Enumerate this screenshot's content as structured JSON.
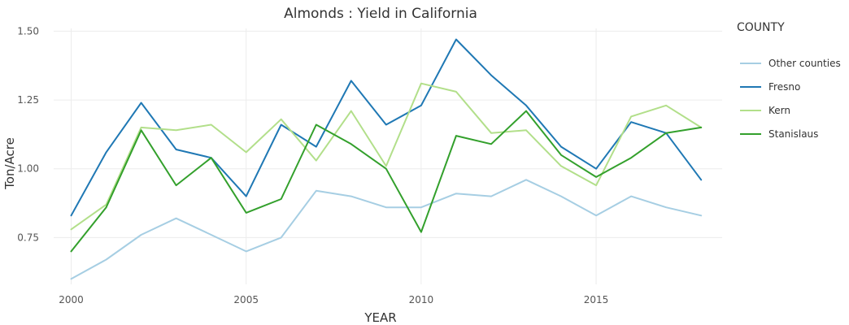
{
  "chart_data": {
    "type": "line",
    "title": "Almonds : Yield in California",
    "xlabel": "YEAR",
    "ylabel": "Ton/Acre",
    "xlim": [
      1999.5,
      2018.6
    ],
    "ylim": [
      0.58,
      1.51
    ],
    "x_ticks": [
      2000,
      2005,
      2010,
      2015
    ],
    "x_tick_labels": [
      "2000",
      "2005",
      "2010",
      "2015"
    ],
    "y_ticks": [
      0.75,
      1.0,
      1.25,
      1.5
    ],
    "y_tick_labels": [
      "0.75",
      "1.00",
      "1.25",
      "1.50"
    ],
    "grid": true,
    "legend": {
      "title": "COUNTY",
      "placement": "right"
    },
    "x": [
      2000,
      2001,
      2002,
      2003,
      2004,
      2005,
      2006,
      2007,
      2008,
      2009,
      2010,
      2011,
      2012,
      2013,
      2014,
      2015,
      2016,
      2017,
      2018
    ],
    "series": [
      {
        "name": "Other counties",
        "color": "#a6cee3",
        "values": [
          0.6,
          0.67,
          0.76,
          0.82,
          0.76,
          0.7,
          0.75,
          0.92,
          0.9,
          0.86,
          0.86,
          0.91,
          0.9,
          0.96,
          0.9,
          0.83,
          0.9,
          0.86,
          0.83
        ]
      },
      {
        "name": "Fresno",
        "color": "#1f78b4",
        "values": [
          0.83,
          1.06,
          1.24,
          1.07,
          1.04,
          0.9,
          1.16,
          1.08,
          1.32,
          1.16,
          1.23,
          1.47,
          1.34,
          1.23,
          1.08,
          1.0,
          1.17,
          1.13,
          0.96
        ]
      },
      {
        "name": "Kern",
        "color": "#b2df8a",
        "values": [
          0.78,
          0.87,
          1.15,
          1.14,
          1.16,
          1.06,
          1.18,
          1.03,
          1.21,
          1.01,
          1.31,
          1.28,
          1.13,
          1.14,
          1.01,
          0.94,
          1.19,
          1.23,
          1.15
        ]
      },
      {
        "name": "Stanislaus",
        "color": "#33a02c",
        "values": [
          0.7,
          0.86,
          1.14,
          0.94,
          1.04,
          0.84,
          0.89,
          1.16,
          1.09,
          1.0,
          0.77,
          1.12,
          1.09,
          1.21,
          1.05,
          0.97,
          1.04,
          1.13,
          1.15
        ]
      }
    ]
  }
}
